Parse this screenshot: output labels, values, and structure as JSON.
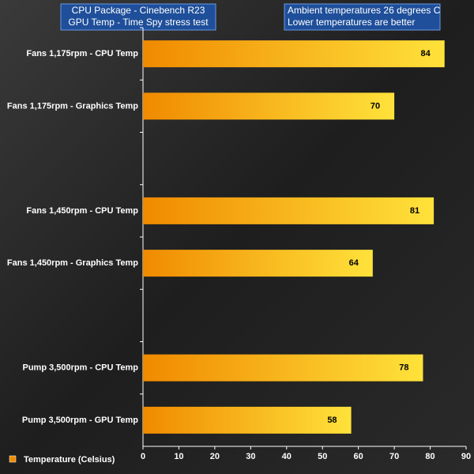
{
  "chart_data": {
    "type": "bar",
    "orientation": "horizontal",
    "title": "CPU Package - Cinebench R23",
    "subtitle": "GPU Temp - Time Spy stress test",
    "annotations": [
      "Ambient temperatures 26 degrees C",
      "Lower temperatures are better"
    ],
    "categories": [
      "Fans 1,175rpm - CPU Temp",
      "Fans 1,175rpm - Graphics Temp",
      null,
      "Fans 1,450rpm - CPU Temp",
      "Fans 1,450rpm - Graphics Temp",
      null,
      "Pump 3,500rpm - CPU Temp",
      "Pump 3,500rpm - GPU Temp"
    ],
    "series": [
      {
        "name": "Temperature (Celsius)",
        "color": "#f08a00",
        "values": [
          84,
          70,
          null,
          81,
          64,
          null,
          78,
          58
        ]
      }
    ],
    "xlim": [
      0,
      90
    ],
    "xticks": [
      0,
      10,
      20,
      30,
      40,
      50,
      60,
      70,
      80,
      90
    ],
    "grid": false,
    "legend": "bottom-left"
  }
}
